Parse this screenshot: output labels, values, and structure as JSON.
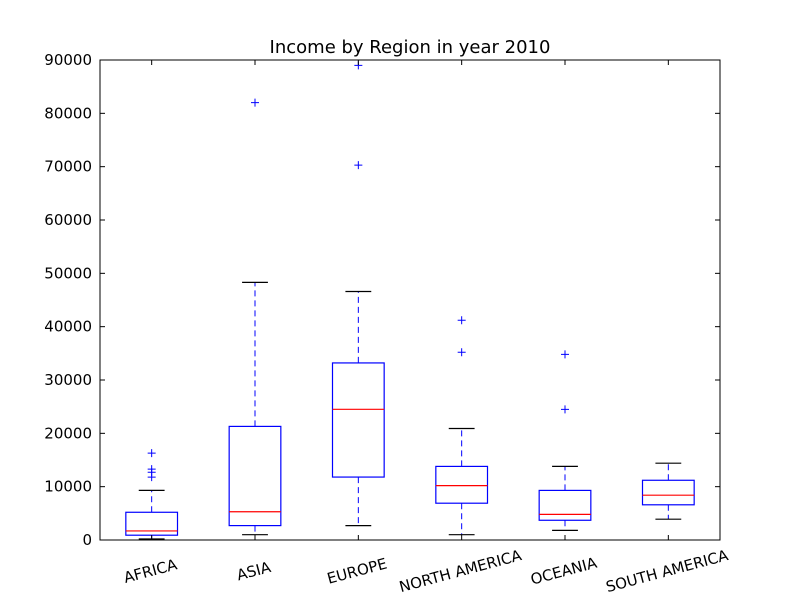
{
  "chart_data": {
    "type": "box",
    "title": "Income by Region in year 2010",
    "xlabel": "",
    "ylabel": "",
    "ylim": [
      0,
      90000
    ],
    "yticks": [
      0,
      10000,
      20000,
      30000,
      40000,
      50000,
      60000,
      70000,
      80000,
      90000
    ],
    "ytick_labels": [
      "0",
      "10000",
      "20000",
      "30000",
      "40000",
      "50000",
      "60000",
      "70000",
      "80000",
      "90000"
    ],
    "grid": false,
    "categories": [
      "AFRICA",
      "ASIA",
      "EUROPE",
      "NORTH AMERICA",
      "OCEANIA",
      "SOUTH AMERICA"
    ],
    "boxes": [
      {
        "whislo": 200,
        "q1": 900,
        "med": 1700,
        "q3": 5200,
        "whishi": 9300,
        "fliers": [
          11800,
          12700,
          13300,
          16300
        ]
      },
      {
        "whislo": 1000,
        "q1": 2700,
        "med": 5300,
        "q3": 21300,
        "whishi": 48300,
        "fliers": [
          82000
        ]
      },
      {
        "whislo": 2700,
        "q1": 11800,
        "med": 24500,
        "q3": 33200,
        "whishi": 46600,
        "fliers": [
          70300,
          89000
        ]
      },
      {
        "whislo": 1000,
        "q1": 6900,
        "med": 10200,
        "q3": 13800,
        "whishi": 20900,
        "fliers": [
          35200,
          41200
        ]
      },
      {
        "whislo": 1800,
        "q1": 3700,
        "med": 4800,
        "q3": 9300,
        "whishi": 13800,
        "fliers": [
          24500,
          34800
        ]
      },
      {
        "whislo": 3900,
        "q1": 6600,
        "med": 8400,
        "q3": 11200,
        "whishi": 14400,
        "fliers": []
      }
    ],
    "colors": {
      "box": "#0000ff",
      "median": "#ff0000",
      "flier": "#0000ff",
      "cap": "#000000",
      "axes": "#000000"
    }
  }
}
